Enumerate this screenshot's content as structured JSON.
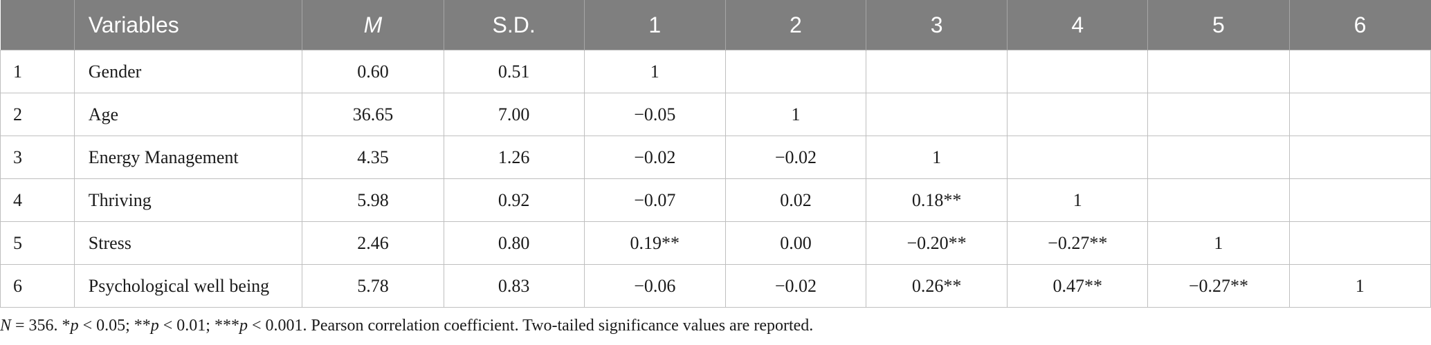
{
  "table": {
    "headers": [
      "",
      "Variables",
      "M",
      "S.D.",
      "1",
      "2",
      "3",
      "4",
      "5",
      "6"
    ],
    "rows": [
      [
        "1",
        "Gender",
        "0.60",
        "0.51",
        "1",
        "",
        "",
        "",
        "",
        ""
      ],
      [
        "2",
        "Age",
        "36.65",
        "7.00",
        "−0.05",
        "1",
        "",
        "",
        "",
        ""
      ],
      [
        "3",
        "Energy Management",
        "4.35",
        "1.26",
        "−0.02",
        "−0.02",
        "1",
        "",
        "",
        ""
      ],
      [
        "4",
        "Thriving",
        "5.98",
        "0.92",
        "−0.07",
        "0.02",
        "0.18**",
        "1",
        "",
        ""
      ],
      [
        "5",
        "Stress",
        "2.46",
        "0.80",
        "0.19**",
        "0.00",
        "−0.20**",
        "−0.27**",
        "1",
        ""
      ],
      [
        "6",
        "Psychological well being",
        "5.78",
        "0.83",
        "−0.06",
        "−0.02",
        "0.26**",
        "0.47**",
        "−0.27**",
        "1"
      ]
    ]
  },
  "note": {
    "n_label": "N",
    "n_value": " = 356. *",
    "p1": "p",
    "p1_text": " < 0.05; **",
    "p2": "p",
    "p2_text": " < 0.01; ***",
    "p3": "p",
    "p3_text": " < 0.001. Pearson correlation coefficient. Two-tailed significance values are reported."
  },
  "colors": {
    "header_bg": "#7f7f7f",
    "header_text": "#ffffff",
    "grid": "#bfbfbf"
  }
}
